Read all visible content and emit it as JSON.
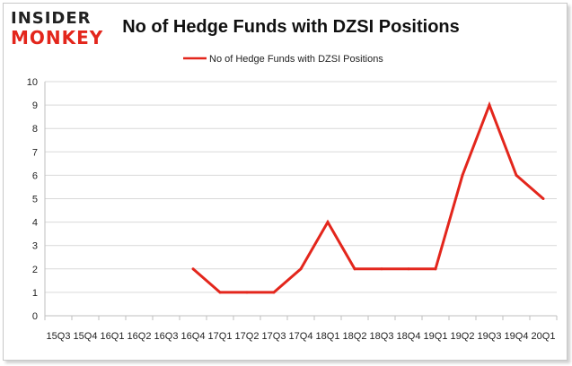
{
  "logo": {
    "line1": "INSIDER",
    "line2": "MONKEY",
    "icon": "insider-monkey-logo"
  },
  "colors": {
    "series": "#e3261c",
    "grid": "#d9d9d9",
    "axis": "#bfbfbf"
  },
  "chart_data": {
    "type": "line",
    "title": "No of Hedge Funds with DZSI Positions",
    "xlabel": "",
    "ylabel": "",
    "ylim": [
      0,
      10
    ],
    "yticks": [
      0,
      1,
      2,
      3,
      4,
      5,
      6,
      7,
      8,
      9,
      10
    ],
    "grid": true,
    "legend_position": "top-center",
    "categories": [
      "15Q3",
      "15Q4",
      "16Q1",
      "16Q2",
      "16Q3",
      "16Q4",
      "17Q1",
      "17Q2",
      "17Q3",
      "17Q4",
      "18Q1",
      "18Q2",
      "18Q3",
      "18Q4",
      "19Q1",
      "19Q2",
      "19Q3",
      "19Q4",
      "20Q1"
    ],
    "series": [
      {
        "name": "No of Hedge Funds with DZSI Positions",
        "values": [
          null,
          null,
          null,
          null,
          null,
          2,
          1,
          1,
          1,
          2,
          4,
          2,
          2,
          2,
          2,
          6,
          9,
          6,
          5
        ]
      }
    ]
  }
}
